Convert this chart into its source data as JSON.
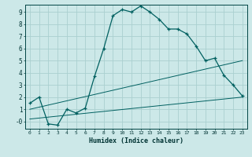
{
  "title": "",
  "xlabel": "Humidex (Indice chaleur)",
  "bg_color": "#cce8e8",
  "grid_color": "#aad0d0",
  "line_color": "#006060",
  "marker": "+",
  "xlim": [
    -0.5,
    23.5
  ],
  "ylim": [
    -0.6,
    9.6
  ],
  "xticks": [
    0,
    1,
    2,
    3,
    4,
    5,
    6,
    7,
    8,
    9,
    10,
    11,
    12,
    13,
    14,
    15,
    16,
    17,
    18,
    19,
    20,
    21,
    22,
    23
  ],
  "yticks": [
    0,
    1,
    2,
    3,
    4,
    5,
    6,
    7,
    8,
    9
  ],
  "ytick_labels": [
    "-0",
    "1",
    "2",
    "3",
    "4",
    "5",
    "6",
    "7",
    "8",
    "9"
  ],
  "series1_x": [
    0,
    1,
    2,
    3,
    4,
    5,
    6,
    7,
    8,
    9,
    10,
    11,
    12,
    13,
    14,
    15,
    16,
    17,
    18,
    19,
    20,
    21,
    22,
    23
  ],
  "series1_y": [
    1.5,
    2.0,
    -0.2,
    -0.3,
    1.0,
    0.7,
    1.1,
    3.7,
    6.0,
    8.7,
    9.2,
    9.0,
    9.5,
    9.0,
    8.4,
    7.6,
    7.6,
    7.2,
    6.2,
    5.0,
    5.2,
    3.8,
    3.0,
    2.1
  ],
  "series2_x": [
    0,
    23
  ],
  "series2_y": [
    0.2,
    2.0
  ],
  "series3_x": [
    0,
    23
  ],
  "series3_y": [
    1.0,
    5.0
  ]
}
